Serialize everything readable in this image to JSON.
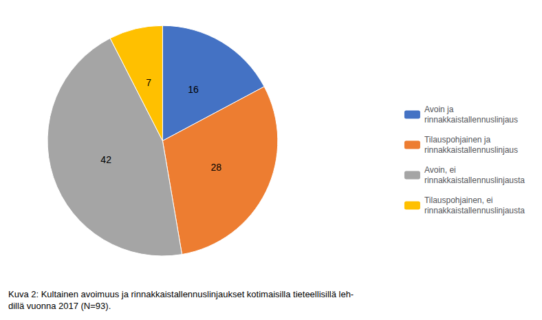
{
  "chart_data": {
    "type": "pie",
    "categories": [
      "Avoin ja\nrinnakkaistallennuslinjaus",
      "Tilauspohjainen ja\nrinnakkaistallennuslinjaus",
      "Avoin, ei\nrinnakkaistallennuslinjausta",
      "Tilauspohjainen, ei\nrinnakkaistallennuslinjausta"
    ],
    "values": [
      16,
      28,
      42,
      7
    ],
    "colors": [
      "#4472C4",
      "#ED7D31",
      "#A5A5A5",
      "#FFC000"
    ],
    "data_labels": true,
    "legend": "right",
    "annotations": [
      "Kuva 2: Kultainen avoimuus ja rinnakkaistallennuslinjaukset kotimaisilla tieteellisillä leh-\ndillä vuonna 2017 (N=93)."
    ]
  }
}
